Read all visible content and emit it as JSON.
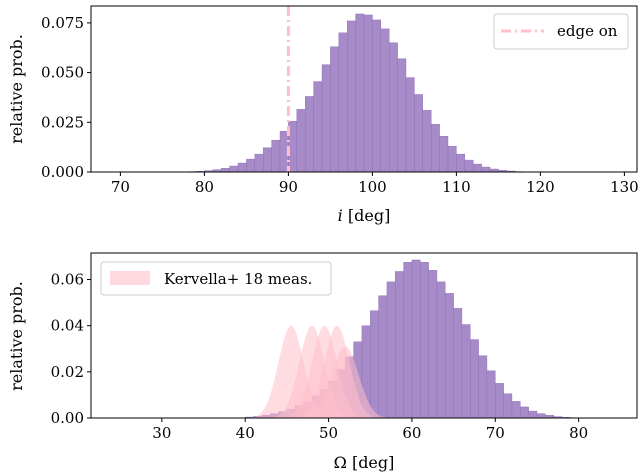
{
  "chart_data": [
    {
      "type": "histogram",
      "xlabel": "i [deg]",
      "ylabel": "relative prob.",
      "xlim": [
        66.5,
        131.5
      ],
      "ylim": [
        0,
        0.0835
      ],
      "xticks": [
        70,
        80,
        90,
        100,
        110,
        120,
        130
      ],
      "yticks": [
        "0.000",
        "0.025",
        "0.050",
        "0.075"
      ],
      "bin_width": 1,
      "bins": [
        [
          78,
          0.0002
        ],
        [
          79,
          0.0004
        ],
        [
          80,
          0.0007
        ],
        [
          81,
          0.0012
        ],
        [
          82,
          0.0019
        ],
        [
          83,
          0.003
        ],
        [
          84,
          0.0045
        ],
        [
          85,
          0.0065
        ],
        [
          86,
          0.009
        ],
        [
          87,
          0.0122
        ],
        [
          88,
          0.016
        ],
        [
          89,
          0.0205
        ],
        [
          90,
          0.0255
        ],
        [
          91,
          0.0315
        ],
        [
          92,
          0.038
        ],
        [
          93,
          0.0455
        ],
        [
          94,
          0.054
        ],
        [
          95,
          0.063
        ],
        [
          96,
          0.07
        ],
        [
          97,
          0.076
        ],
        [
          98,
          0.0795
        ],
        [
          99,
          0.079
        ],
        [
          100,
          0.0765
        ],
        [
          101,
          0.072
        ],
        [
          102,
          0.065
        ],
        [
          103,
          0.057
        ],
        [
          104,
          0.0475
        ],
        [
          105,
          0.039
        ],
        [
          106,
          0.031
        ],
        [
          107,
          0.024
        ],
        [
          108,
          0.018
        ],
        [
          109,
          0.013
        ],
        [
          110,
          0.009
        ],
        [
          111,
          0.006
        ],
        [
          112,
          0.004
        ],
        [
          113,
          0.0025
        ],
        [
          114,
          0.0015
        ],
        [
          115,
          0.0009
        ],
        [
          116,
          0.0005
        ],
        [
          117,
          0.0002
        ]
      ],
      "vline": {
        "x": 90,
        "label": "edge on",
        "style": "dash-dot"
      },
      "legend": {
        "position": "upper right",
        "entries": [
          "edge on"
        ]
      },
      "colors": {
        "bars": "#a78bc9",
        "bar_edges": "#8a6bb4",
        "vline": "#ffc0cb"
      }
    },
    {
      "type": "histogram",
      "xlabel": "Ω [deg]",
      "ylabel": "relative prob.",
      "xlim": [
        21.5,
        87.0
      ],
      "ylim": [
        0,
        0.0715
      ],
      "xticks": [
        30,
        40,
        50,
        60,
        70,
        80
      ],
      "yticks": [
        "0.00",
        "0.02",
        "0.04",
        "0.06"
      ],
      "bin_width": 1,
      "bins": [
        [
          40,
          0.0004
        ],
        [
          41,
          0.0007
        ],
        [
          42,
          0.0012
        ],
        [
          43,
          0.0019
        ],
        [
          44,
          0.0027
        ],
        [
          45,
          0.0038
        ],
        [
          46,
          0.0053
        ],
        [
          47,
          0.007
        ],
        [
          48,
          0.0095
        ],
        [
          49,
          0.0125
        ],
        [
          50,
          0.016
        ],
        [
          51,
          0.021
        ],
        [
          52,
          0.0265
        ],
        [
          53,
          0.033
        ],
        [
          54,
          0.04
        ],
        [
          55,
          0.0465
        ],
        [
          56,
          0.053
        ],
        [
          57,
          0.059
        ],
        [
          58,
          0.0635
        ],
        [
          59,
          0.0675
        ],
        [
          60,
          0.0685
        ],
        [
          61,
          0.0675
        ],
        [
          62,
          0.064
        ],
        [
          63,
          0.059
        ],
        [
          64,
          0.054
        ],
        [
          65,
          0.0475
        ],
        [
          66,
          0.0405
        ],
        [
          67,
          0.034
        ],
        [
          68,
          0.027
        ],
        [
          69,
          0.0205
        ],
        [
          70,
          0.015
        ],
        [
          71,
          0.0105
        ],
        [
          72,
          0.0072
        ],
        [
          73,
          0.0048
        ],
        [
          74,
          0.003
        ],
        [
          75,
          0.0019
        ],
        [
          76,
          0.0012
        ],
        [
          77,
          0.0006
        ],
        [
          78,
          0.0003
        ]
      ],
      "overlay_series": [
        {
          "mean": 45.5,
          "sigma": 1.5,
          "peak": 0.04
        },
        {
          "mean": 48.0,
          "sigma": 1.5,
          "peak": 0.04
        },
        {
          "mean": 49.5,
          "sigma": 1.5,
          "peak": 0.04
        },
        {
          "mean": 51.0,
          "sigma": 1.5,
          "peak": 0.04
        },
        {
          "mean": 52.0,
          "sigma": 1.6,
          "peak": 0.031
        }
      ],
      "legend": {
        "position": "upper left",
        "entries": [
          "Kervella+ 18 meas."
        ]
      },
      "colors": {
        "bars": "#a78bc9",
        "bar_edges": "#8a6bb4",
        "overlay": "#ffc0cb"
      }
    }
  ]
}
